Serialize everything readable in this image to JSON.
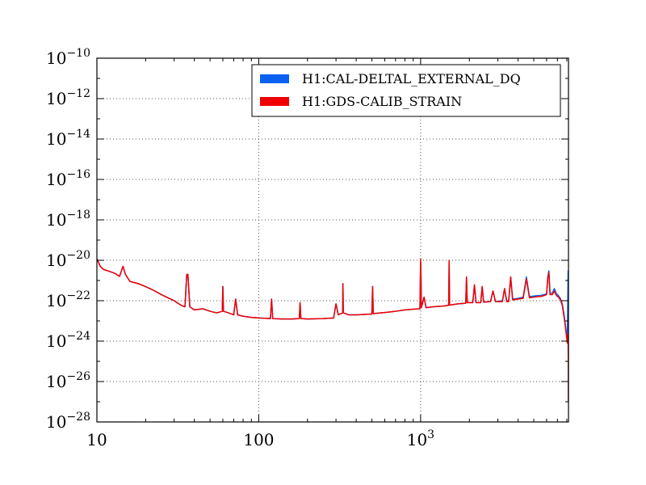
{
  "chart_data": {
    "type": "line",
    "title": "",
    "xlabel": "",
    "ylabel": "",
    "xscale": "log",
    "yscale": "log",
    "xlim": [
      10,
      8192
    ],
    "ylim": [
      1e-28,
      1e-10
    ],
    "grid": true,
    "legend_placement": "top-right",
    "x_ticks": [
      {
        "value": 10,
        "label": "10"
      },
      {
        "value": 100,
        "label": "100"
      },
      {
        "value": 1000,
        "base": "10",
        "exp": "3"
      }
    ],
    "y_ticks": [
      {
        "value": 1e-10,
        "base": "10",
        "exp": "−10"
      },
      {
        "value": 1e-12,
        "base": "10",
        "exp": "−12"
      },
      {
        "value": 1e-14,
        "base": "10",
        "exp": "−14"
      },
      {
        "value": 1e-16,
        "base": "10",
        "exp": "−16"
      },
      {
        "value": 1e-18,
        "base": "10",
        "exp": "−18"
      },
      {
        "value": 1e-20,
        "base": "10",
        "exp": "−20"
      },
      {
        "value": 1e-22,
        "base": "10",
        "exp": "−22"
      },
      {
        "value": 1e-24,
        "base": "10",
        "exp": "−24"
      },
      {
        "value": 1e-26,
        "base": "10",
        "exp": "−26"
      },
      {
        "value": 1e-28,
        "base": "10",
        "exp": "−28"
      }
    ],
    "series": [
      {
        "name": "H1:CAL-DELTAL_EXTERNAL_DQ",
        "color": "#0a60f0",
        "points": [
          [
            10,
            1.2e-20
          ],
          [
            10.5,
            5e-21
          ],
          [
            11,
            3.5e-21
          ],
          [
            12,
            2.8e-21
          ],
          [
            13,
            2.2e-21
          ],
          [
            13.8,
            1.6e-21
          ],
          [
            14.5,
            5e-21
          ],
          [
            15,
            2e-21
          ],
          [
            16,
            9e-22
          ],
          [
            18,
            7e-22
          ],
          [
            20,
            5e-22
          ],
          [
            22,
            3.5e-22
          ],
          [
            25,
            2e-22
          ],
          [
            28,
            1.3e-22
          ],
          [
            30,
            1e-22
          ],
          [
            33,
            6e-23
          ],
          [
            35,
            5e-23
          ],
          [
            35.9,
            2e-21
          ],
          [
            36.5,
            2e-21
          ],
          [
            37.5,
            5e-23
          ],
          [
            40,
            3.5e-23
          ],
          [
            45,
            4e-23
          ],
          [
            50,
            3e-23
          ],
          [
            55,
            2.5e-23
          ],
          [
            59.5,
            3e-23
          ],
          [
            60,
            5e-22
          ],
          [
            60.5,
            3e-23
          ],
          [
            65,
            2.5e-23
          ],
          [
            70,
            2e-23
          ],
          [
            72,
            1.2e-22
          ],
          [
            74,
            2e-23
          ],
          [
            80,
            1.7e-23
          ],
          [
            90,
            1.5e-23
          ],
          [
            100,
            1.4e-23
          ],
          [
            110,
            1.35e-23
          ],
          [
            118,
            1.3e-23
          ],
          [
            120,
            1.2e-22
          ],
          [
            122,
            1.3e-23
          ],
          [
            140,
            1.25e-23
          ],
          [
            160,
            1.25e-23
          ],
          [
            178,
            1.3e-23
          ],
          [
            180,
            8e-23
          ],
          [
            182,
            1.3e-23
          ],
          [
            200,
            1.25e-23
          ],
          [
            250,
            1.3e-23
          ],
          [
            290,
            1.4e-23
          ],
          [
            300,
            7e-23
          ],
          [
            310,
            2e-23
          ],
          [
            330,
            2.5e-23
          ],
          [
            331,
            7e-22
          ],
          [
            333,
            2.5e-23
          ],
          [
            360,
            2e-23
          ],
          [
            400,
            2e-23
          ],
          [
            500,
            2.2e-23
          ],
          [
            505,
            5e-22
          ],
          [
            510,
            2.3e-23
          ],
          [
            600,
            2.6e-23
          ],
          [
            700,
            3e-23
          ],
          [
            800,
            3.5e-23
          ],
          [
            900,
            3.8e-23
          ],
          [
            990,
            4e-23
          ],
          [
            1000,
            8e-21
          ],
          [
            1005,
            1.5e-21
          ],
          [
            1010,
            4.5e-23
          ],
          [
            1050,
            1.5e-22
          ],
          [
            1080,
            4.5e-23
          ],
          [
            1200,
            5e-23
          ],
          [
            1400,
            5.5e-23
          ],
          [
            1490,
            6e-23
          ],
          [
            1500,
            7e-21
          ],
          [
            1510,
            6e-23
          ],
          [
            1700,
            7e-23
          ],
          [
            1900,
            7.5e-23
          ],
          [
            1920,
            1.5e-21
          ],
          [
            1940,
            8e-23
          ],
          [
            2100,
            8e-23
          ],
          [
            2150,
            6e-22
          ],
          [
            2200,
            8e-23
          ],
          [
            2350,
            8e-23
          ],
          [
            2400,
            5e-22
          ],
          [
            2450,
            8.5e-23
          ],
          [
            2700,
            9e-23
          ],
          [
            2800,
            3e-22
          ],
          [
            2900,
            9e-23
          ],
          [
            3200,
            1e-22
          ],
          [
            3300,
            4e-22
          ],
          [
            3400,
            1e-22
          ],
          [
            3500,
            1e-22
          ],
          [
            3600,
            1.5e-21
          ],
          [
            3700,
            1.2e-22
          ],
          [
            4000,
            1.3e-22
          ],
          [
            4300,
            1.5e-22
          ],
          [
            4500,
            1.5e-21
          ],
          [
            4700,
            1.6e-22
          ],
          [
            5000,
            1.7e-22
          ],
          [
            5300,
            1.8e-22
          ],
          [
            5500,
            1.8e-22
          ],
          [
            5800,
            2e-22
          ],
          [
            6000,
            2.2e-22
          ],
          [
            6100,
            1.5e-21
          ],
          [
            6200,
            3e-21
          ],
          [
            6300,
            2.5e-22
          ],
          [
            6500,
            2.3e-22
          ],
          [
            6700,
            4e-22
          ],
          [
            6900,
            2.2e-22
          ],
          [
            7100,
            1.8e-22
          ],
          [
            7300,
            1.3e-22
          ],
          [
            7500,
            7e-23
          ],
          [
            7700,
            2e-23
          ],
          [
            7900,
            4e-24
          ],
          [
            8050,
            1e-24
          ],
          [
            8100,
            3e-23
          ],
          [
            8150,
            3e-21
          ],
          [
            8170,
            1e-25
          ],
          [
            8190,
            1e-27
          ]
        ]
      },
      {
        "name": "H1:GDS-CALIB_STRAIN",
        "color": "#f00000",
        "points": [
          [
            10,
            1.2e-20
          ],
          [
            10.5,
            5e-21
          ],
          [
            11,
            3.5e-21
          ],
          [
            12,
            2.8e-21
          ],
          [
            13,
            2.2e-21
          ],
          [
            13.8,
            1.6e-21
          ],
          [
            14.5,
            5e-21
          ],
          [
            15,
            2e-21
          ],
          [
            16,
            9e-22
          ],
          [
            18,
            7e-22
          ],
          [
            20,
            5e-22
          ],
          [
            22,
            3.5e-22
          ],
          [
            25,
            2e-22
          ],
          [
            28,
            1.3e-22
          ],
          [
            30,
            1e-22
          ],
          [
            33,
            6e-23
          ],
          [
            35,
            5e-23
          ],
          [
            35.9,
            2e-21
          ],
          [
            36.5,
            2e-21
          ],
          [
            37.5,
            5e-23
          ],
          [
            40,
            3.5e-23
          ],
          [
            45,
            4e-23
          ],
          [
            50,
            3e-23
          ],
          [
            55,
            2.5e-23
          ],
          [
            59.5,
            3e-23
          ],
          [
            60,
            5e-22
          ],
          [
            60.5,
            3e-23
          ],
          [
            65,
            2.5e-23
          ],
          [
            70,
            2e-23
          ],
          [
            72,
            1.2e-22
          ],
          [
            74,
            2e-23
          ],
          [
            80,
            1.7e-23
          ],
          [
            90,
            1.5e-23
          ],
          [
            100,
            1.4e-23
          ],
          [
            110,
            1.35e-23
          ],
          [
            118,
            1.3e-23
          ],
          [
            120,
            1.2e-22
          ],
          [
            122,
            1.3e-23
          ],
          [
            140,
            1.25e-23
          ],
          [
            160,
            1.25e-23
          ],
          [
            178,
            1.3e-23
          ],
          [
            180,
            8e-23
          ],
          [
            182,
            1.3e-23
          ],
          [
            200,
            1.25e-23
          ],
          [
            250,
            1.3e-23
          ],
          [
            290,
            1.4e-23
          ],
          [
            300,
            7e-23
          ],
          [
            310,
            2e-23
          ],
          [
            330,
            2.5e-23
          ],
          [
            331,
            7e-22
          ],
          [
            333,
            2.5e-23
          ],
          [
            360,
            2e-23
          ],
          [
            400,
            2e-23
          ],
          [
            500,
            2.2e-23
          ],
          [
            505,
            5e-22
          ],
          [
            510,
            2.3e-23
          ],
          [
            600,
            2.6e-23
          ],
          [
            700,
            3e-23
          ],
          [
            800,
            3.5e-23
          ],
          [
            900,
            3.8e-23
          ],
          [
            990,
            4e-23
          ],
          [
            1000,
            1.2e-20
          ],
          [
            1005,
            1.5e-21
          ],
          [
            1010,
            4.5e-23
          ],
          [
            1050,
            1.5e-22
          ],
          [
            1080,
            4.5e-23
          ],
          [
            1200,
            5e-23
          ],
          [
            1400,
            5.5e-23
          ],
          [
            1490,
            6e-23
          ],
          [
            1500,
            1e-20
          ],
          [
            1510,
            6e-23
          ],
          [
            1700,
            7e-23
          ],
          [
            1900,
            7.5e-23
          ],
          [
            1920,
            1.5e-21
          ],
          [
            1940,
            8e-23
          ],
          [
            2100,
            8e-23
          ],
          [
            2150,
            6e-22
          ],
          [
            2200,
            8e-23
          ],
          [
            2350,
            8e-23
          ],
          [
            2400,
            5e-22
          ],
          [
            2450,
            8.5e-23
          ],
          [
            2700,
            9e-23
          ],
          [
            2800,
            3e-22
          ],
          [
            2900,
            9e-23
          ],
          [
            3200,
            9e-23
          ],
          [
            3300,
            4e-22
          ],
          [
            3400,
            9e-23
          ],
          [
            3500,
            9e-23
          ],
          [
            3600,
            1.5e-21
          ],
          [
            3700,
            1.1e-22
          ],
          [
            4000,
            1.2e-22
          ],
          [
            4300,
            1.3e-22
          ],
          [
            4500,
            1.2e-21
          ],
          [
            4700,
            1.4e-22
          ],
          [
            5000,
            1.5e-22
          ],
          [
            5300,
            1.6e-22
          ],
          [
            5500,
            1.6e-22
          ],
          [
            5800,
            1.8e-22
          ],
          [
            6000,
            2e-22
          ],
          [
            6100,
            1.2e-21
          ],
          [
            6200,
            2.5e-21
          ],
          [
            6300,
            2e-22
          ],
          [
            6500,
            2e-22
          ],
          [
            6700,
            3e-22
          ],
          [
            6900,
            1.8e-22
          ],
          [
            7100,
            1.5e-22
          ],
          [
            7300,
            1.1e-22
          ],
          [
            7500,
            6e-23
          ],
          [
            7700,
            1.5e-23
          ],
          [
            7900,
            3e-24
          ],
          [
            8050,
            8e-25
          ],
          [
            8100,
            2e-24
          ],
          [
            8150,
            2e-24
          ],
          [
            8170,
            1e-25
          ],
          [
            8190,
            1e-27
          ]
        ]
      }
    ]
  }
}
